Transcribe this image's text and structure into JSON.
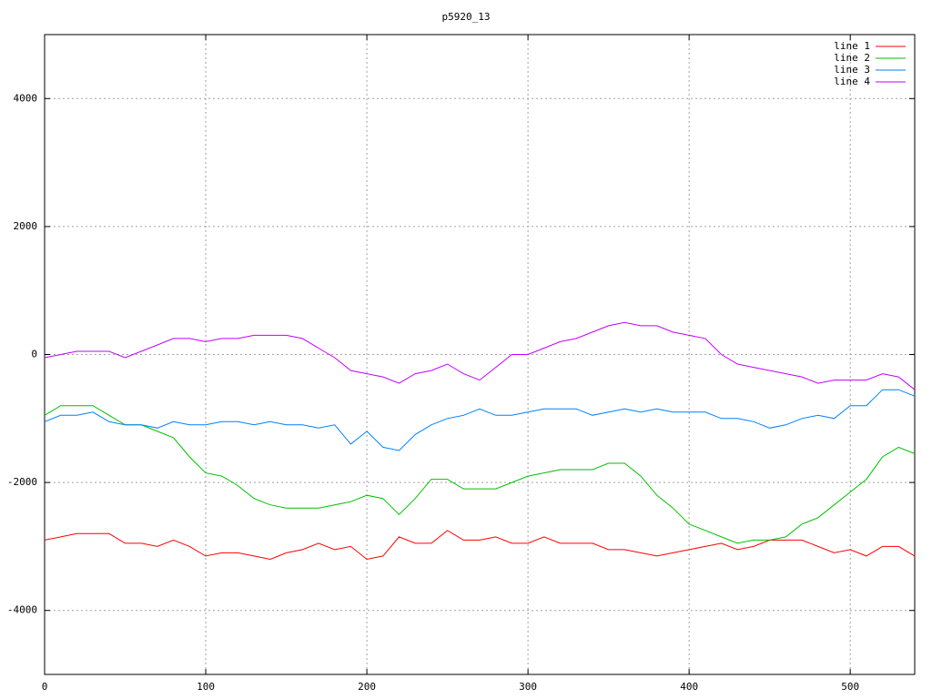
{
  "chart_data": {
    "type": "line",
    "title": "p5920_13",
    "x": [
      0,
      10,
      20,
      30,
      40,
      50,
      60,
      70,
      80,
      90,
      100,
      110,
      120,
      130,
      140,
      150,
      160,
      170,
      180,
      190,
      200,
      210,
      220,
      230,
      240,
      250,
      260,
      270,
      280,
      290,
      300,
      310,
      320,
      330,
      340,
      350,
      360,
      370,
      380,
      390,
      400,
      410,
      420,
      430,
      440,
      450,
      460,
      470,
      480,
      490,
      500,
      510,
      520,
      530,
      540
    ],
    "series": [
      {
        "name": "line 1",
        "color": "#ff0000",
        "values": [
          -2900,
          -2850,
          -2800,
          -2800,
          -2800,
          -2950,
          -2950,
          -3000,
          -2900,
          -3000,
          -3150,
          -3100,
          -3100,
          -3150,
          -3200,
          -3100,
          -3050,
          -2950,
          -3050,
          -3000,
          -3200,
          -3150,
          -2850,
          -2950,
          -2950,
          -2750,
          -2900,
          -2900,
          -2850,
          -2950,
          -2950,
          -2850,
          -2950,
          -2950,
          -2950,
          -3050,
          -3050,
          -3100,
          -3150,
          -3100,
          -3050,
          -3000,
          -2950,
          -3050,
          -3000,
          -2900,
          -2900,
          -2900,
          -3000,
          -3100,
          -3050,
          -3150,
          -3000,
          -3000,
          -3150
        ]
      },
      {
        "name": "line 2",
        "color": "#00c000",
        "values": [
          -950,
          -800,
          -800,
          -800,
          -950,
          -1100,
          -1100,
          -1200,
          -1300,
          -1600,
          -1850,
          -1900,
          -2050,
          -2250,
          -2350,
          -2400,
          -2400,
          -2400,
          -2350,
          -2300,
          -2200,
          -2250,
          -2500,
          -2250,
          -1950,
          -1950,
          -2100,
          -2100,
          -2100,
          -2000,
          -1900,
          -1850,
          -1800,
          -1800,
          -1800,
          -1700,
          -1700,
          -1900,
          -2200,
          -2400,
          -2650,
          -2750,
          -2850,
          -2950,
          -2900,
          -2900,
          -2850,
          -2650,
          -2550,
          -2350,
          -2150,
          -1950,
          -1600,
          -1450,
          -1550
        ]
      },
      {
        "name": "line 3",
        "color": "#0080ff",
        "values": [
          -1050,
          -950,
          -950,
          -900,
          -1050,
          -1100,
          -1100,
          -1150,
          -1050,
          -1100,
          -1100,
          -1050,
          -1050,
          -1100,
          -1050,
          -1100,
          -1100,
          -1150,
          -1100,
          -1400,
          -1200,
          -1450,
          -1500,
          -1250,
          -1100,
          -1000,
          -950,
          -850,
          -950,
          -950,
          -900,
          -850,
          -850,
          -850,
          -950,
          -900,
          -850,
          -900,
          -850,
          -900,
          -900,
          -900,
          -1000,
          -1000,
          -1050,
          -1150,
          -1100,
          -1000,
          -950,
          -1000,
          -800,
          -800,
          -550,
          -550,
          -650
        ]
      },
      {
        "name": "line 4",
        "color": "#c000ff",
        "values": [
          -50,
          0,
          50,
          50,
          50,
          -50,
          50,
          150,
          250,
          250,
          200,
          250,
          250,
          300,
          300,
          300,
          250,
          100,
          -50,
          -250,
          -300,
          -350,
          -450,
          -300,
          -250,
          -150,
          -300,
          -400,
          -200,
          0,
          0,
          100,
          200,
          250,
          350,
          450,
          500,
          450,
          450,
          350,
          300,
          250,
          0,
          -150,
          -200,
          -250,
          -300,
          -350,
          -450,
          -400,
          -400,
          -400,
          -300,
          -350,
          -550
        ]
      }
    ],
    "xlim": [
      0,
      540
    ],
    "ylim": [
      -5000,
      5000
    ],
    "xticks": [
      0,
      100,
      200,
      300,
      400,
      500
    ],
    "yticks": [
      -4000,
      -2000,
      0,
      2000,
      4000
    ],
    "grid": true,
    "legend": "top-right"
  }
}
